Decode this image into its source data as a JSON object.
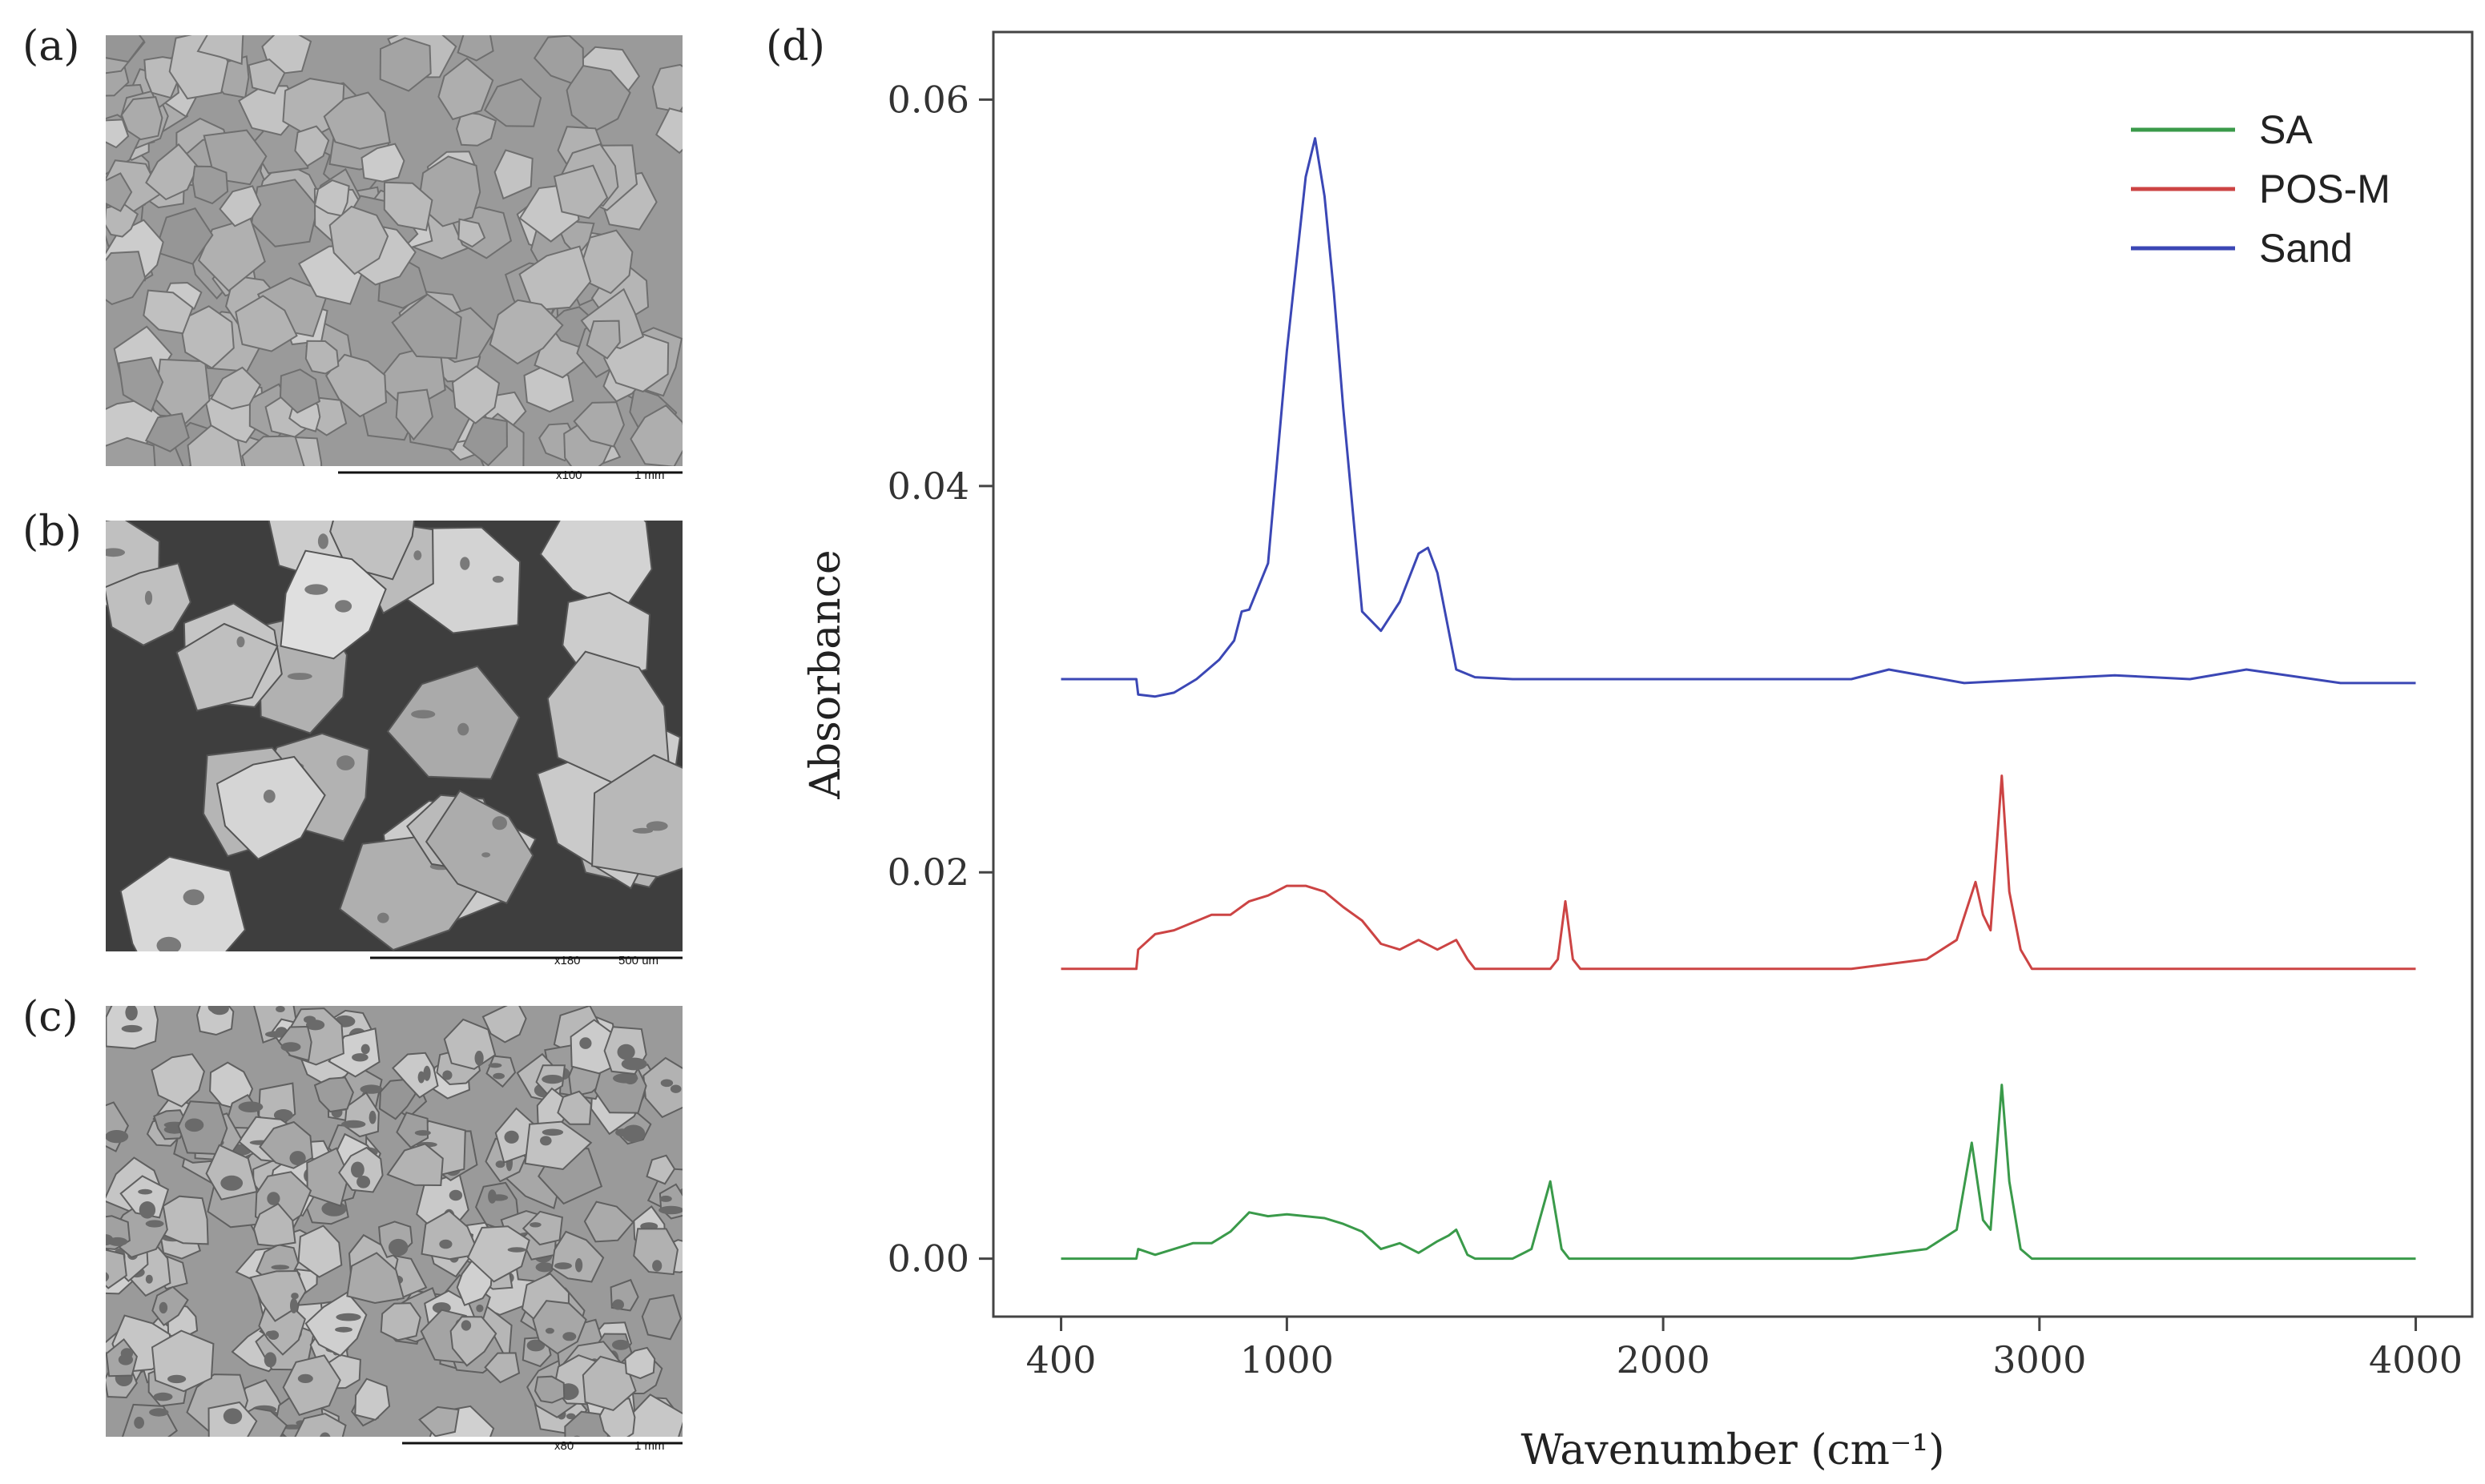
{
  "panels": {
    "a": {
      "label": "(a)",
      "scale_mag": "x100",
      "scale_len": "1 mm"
    },
    "b": {
      "label": "(b)",
      "scale_mag": "x180",
      "scale_len": "500 um"
    },
    "c": {
      "label": "(c)",
      "scale_mag": "x80",
      "scale_len": "1 mm"
    },
    "d": {
      "label": "(d)"
    }
  },
  "colors": {
    "SA": "#3a9a4a",
    "POS-M": "#cc4444",
    "Sand": "#3b47b5"
  },
  "chart_data": {
    "type": "line",
    "xlabel": "Wavenumber (cm⁻¹)",
    "ylabel": "Absorbance",
    "xlim": [
      220,
      4150
    ],
    "ylim": [
      -0.003,
      0.0635
    ],
    "xticks": [
      400,
      1000,
      2000,
      3000,
      4000
    ],
    "xtick_labels": [
      "400",
      "1000",
      "2000",
      "3000",
      "4000"
    ],
    "yticks": [
      0.0,
      0.02,
      0.04,
      0.06
    ],
    "ytick_labels": [
      "0.00",
      "0.02",
      "0.04",
      "0.06"
    ],
    "legend_position": "top-right",
    "grid": false,
    "series": [
      {
        "name": "SA",
        "color": "#3a9a4a",
        "x": [
          400,
          600,
          605,
          650,
          700,
          750,
          800,
          850,
          900,
          950,
          1000,
          1050,
          1100,
          1150,
          1200,
          1250,
          1300,
          1350,
          1400,
          1430,
          1450,
          1480,
          1500,
          1550,
          1600,
          1650,
          1700,
          1730,
          1750,
          1800,
          2000,
          2500,
          2700,
          2780,
          2820,
          2850,
          2870,
          2900,
          2920,
          2950,
          2980,
          3000,
          3200,
          3500,
          3800,
          4000
        ],
        "y": [
          0.0,
          0.0,
          0.0005,
          0.0002,
          0.0005,
          0.0008,
          0.0008,
          0.0014,
          0.0024,
          0.0022,
          0.0023,
          0.0022,
          0.0021,
          0.0018,
          0.0014,
          0.0005,
          0.0008,
          0.0003,
          0.0009,
          0.0012,
          0.0015,
          0.0002,
          0.0,
          0.0,
          0.0,
          0.0005,
          0.004,
          0.0005,
          0.0,
          0.0,
          0.0,
          0.0,
          0.0005,
          0.0015,
          0.006,
          0.002,
          0.0015,
          0.009,
          0.004,
          0.0005,
          0.0,
          0.0,
          0.0,
          0.0,
          0.0,
          0.0
        ]
      },
      {
        "name": "POS-M",
        "color": "#cc4444",
        "x": [
          400,
          600,
          605,
          650,
          700,
          800,
          850,
          900,
          950,
          1000,
          1050,
          1100,
          1150,
          1200,
          1250,
          1300,
          1350,
          1400,
          1450,
          1480,
          1500,
          1550,
          1650,
          1700,
          1720,
          1740,
          1760,
          1780,
          2000,
          2500,
          2700,
          2780,
          2830,
          2850,
          2870,
          2900,
          2920,
          2950,
          2980,
          3000,
          3200,
          3500,
          3800,
          4000
        ],
        "y": [
          0.015,
          0.015,
          0.016,
          0.0168,
          0.017,
          0.0178,
          0.0178,
          0.0185,
          0.0188,
          0.0193,
          0.0193,
          0.019,
          0.0182,
          0.0175,
          0.0163,
          0.016,
          0.0165,
          0.016,
          0.0165,
          0.0155,
          0.015,
          0.015,
          0.015,
          0.015,
          0.0155,
          0.0185,
          0.0155,
          0.015,
          0.015,
          0.015,
          0.0155,
          0.0165,
          0.0195,
          0.0178,
          0.017,
          0.025,
          0.019,
          0.016,
          0.015,
          0.015,
          0.015,
          0.015,
          0.015,
          0.015
        ]
      },
      {
        "name": "Sand",
        "color": "#3b47b5",
        "x": [
          400,
          600,
          605,
          650,
          700,
          760,
          790,
          820,
          860,
          880,
          900,
          950,
          1000,
          1050,
          1075,
          1100,
          1125,
          1150,
          1200,
          1250,
          1300,
          1350,
          1375,
          1400,
          1450,
          1500,
          1600,
          2000,
          2500,
          2600,
          2800,
          3000,
          3200,
          3400,
          3550,
          3800,
          4000
        ],
        "y": [
          0.03,
          0.03,
          0.0292,
          0.0291,
          0.0293,
          0.03,
          0.0305,
          0.031,
          0.032,
          0.0335,
          0.0336,
          0.036,
          0.047,
          0.056,
          0.058,
          0.055,
          0.05,
          0.044,
          0.0335,
          0.0325,
          0.034,
          0.0365,
          0.0368,
          0.0355,
          0.0305,
          0.0301,
          0.03,
          0.03,
          0.03,
          0.0305,
          0.0298,
          0.03,
          0.0302,
          0.03,
          0.0305,
          0.0298,
          0.0298
        ]
      }
    ]
  }
}
